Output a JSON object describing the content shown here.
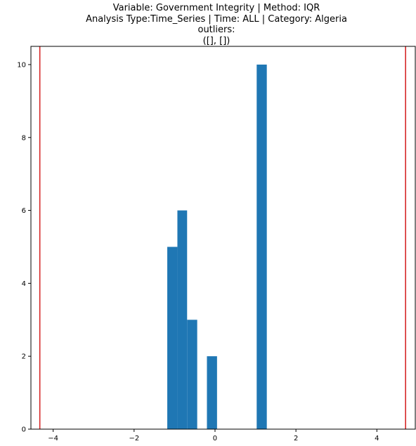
{
  "chart_data": {
    "type": "bar",
    "title_lines": [
      "Variable: Government Integrity | Method: IQR",
      "Analysis Type:Time_Series | Time: ALL | Category: Algeria",
      "outliers:",
      "([], [])"
    ],
    "xlabel": "",
    "ylabel": "",
    "xlim": [
      -4.55,
      4.95
    ],
    "ylim": [
      0,
      10.5
    ],
    "x_ticks": [
      -4,
      -2,
      0,
      2,
      4
    ],
    "x_tick_labels": [
      "−4",
      "−2",
      "0",
      "2",
      "4"
    ],
    "y_ticks": [
      0,
      2,
      4,
      6,
      8,
      10
    ],
    "y_tick_labels": [
      "0",
      "2",
      "4",
      "6",
      "8",
      "10"
    ],
    "bar_color": "#1f77b4",
    "bins": [
      {
        "x0": -1.18,
        "x1": -0.93,
        "value": 5
      },
      {
        "x0": -0.93,
        "x1": -0.69,
        "value": 6
      },
      {
        "x0": -0.69,
        "x1": -0.44,
        "value": 3
      },
      {
        "x0": -0.2,
        "x1": 0.05,
        "value": 2
      },
      {
        "x0": 1.03,
        "x1": 1.28,
        "value": 10
      }
    ],
    "threshold_lines": {
      "color": "#d62728",
      "values": [
        -4.33,
        4.71
      ]
    },
    "grid": false,
    "legend": "none"
  }
}
